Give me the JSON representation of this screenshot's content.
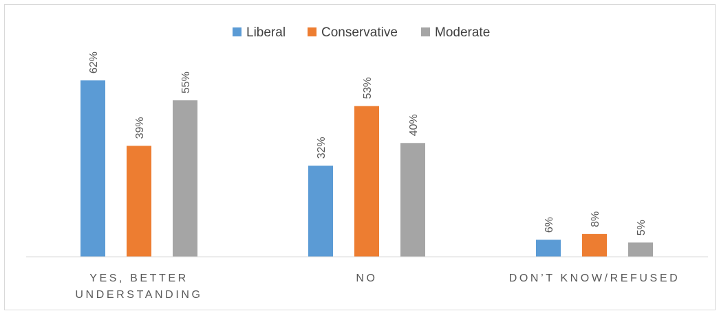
{
  "chart_data": {
    "type": "bar",
    "title": "",
    "xlabel": "",
    "ylabel": "",
    "ylim": [
      0,
      70
    ],
    "grid": false,
    "legend_position": "top-center",
    "categories": [
      [
        "YES, BETTER",
        "UNDERSTANDING"
      ],
      [
        "NO"
      ],
      [
        "DON’T KNOW/REFUSED"
      ]
    ],
    "series": [
      {
        "name": "Liberal",
        "color": "#5b9bd5",
        "values": [
          62,
          32,
          6
        ],
        "labels": [
          "62%",
          "32%",
          "6%"
        ]
      },
      {
        "name": "Conservative",
        "color": "#ed7d31",
        "values": [
          39,
          53,
          8
        ],
        "labels": [
          "39%",
          "53%",
          "8%"
        ]
      },
      {
        "name": "Moderate",
        "color": "#a5a5a5",
        "values": [
          55,
          40,
          5
        ],
        "labels": [
          "55%",
          "40%",
          "5%"
        ]
      }
    ]
  }
}
